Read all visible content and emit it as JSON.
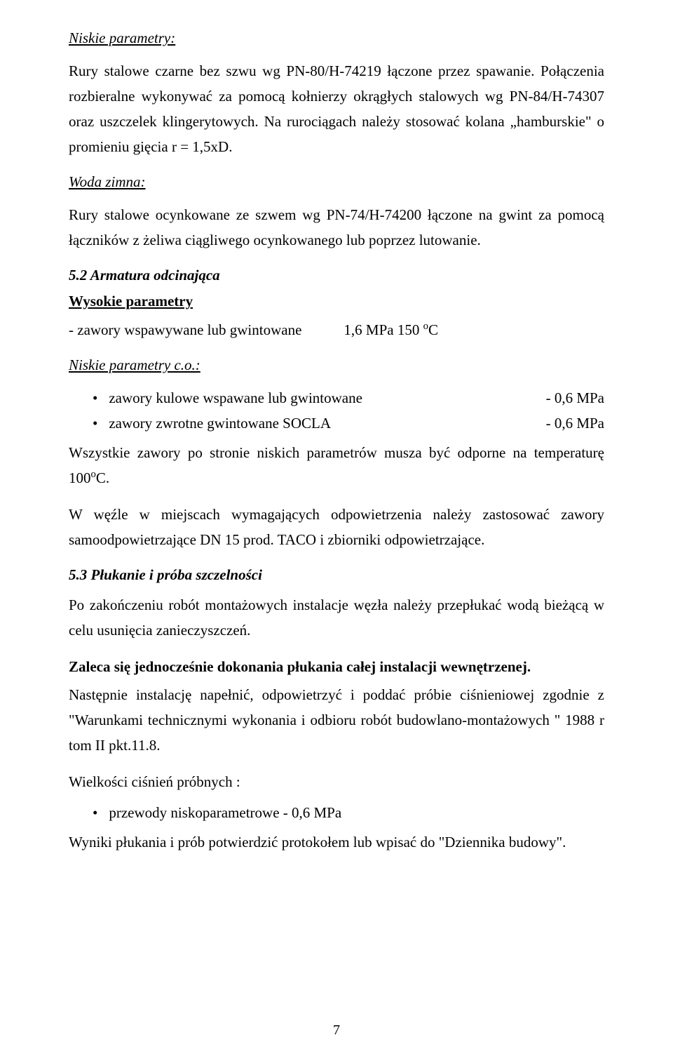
{
  "h1": "Niskie parametry:",
  "p1": "Rury stalowe czarne bez szwu wg PN-80/H-74219 łączone przez spawanie. Połączenia rozbieralne wykonywać za pomocą kołnierzy okrągłych stalowych wg PN-84/H-74307 oraz uszczelek klingerytowych. Na rurociągach należy stosować kolana „hamburskie\" o promieniu gięcia r = 1,5xD.",
  "h2": "Woda zimna:",
  "p2": "Rury stalowe ocynkowane ze szwem wg PN-74/H-74200 łączone na gwint za pomocą łączników z żeliwa ciągliwego ocynkowanego lub poprzez lutowanie.",
  "sec52": "5.2   Armatura odcinająca",
  "wysH": "Wysokie parametry",
  "wysL": "- zawory wspawywane lub gwintowane",
  "wysR_pre": "1,6 MPa  150 ",
  "wysR_unit": "C",
  "h3": "Niskie parametry   c.o.:",
  "b1l": "zawory kulowe wspawane lub gwintowane",
  "b1r": "- 0,6 MPa",
  "b2l": "zawory zwrotne gwintowane SOCLA",
  "b2r": "- 0,6 MPa",
  "p3a": "Wszystkie   zawory   po   stronie   niskich   parametrów   musza   być   odporne na temperaturę 100",
  "p3b": "C.",
  "p4": "W węźle w miejscach wymagających odpowietrzenia należy zastosować zawory samoodpowietrzające DN 15 prod. TACO i zbiorniki odpowietrzające.",
  "sec53": "5.3   Płukanie i próba szczelności",
  "p5": "Po zakończeniu robót montażowych instalacje węzła należy przepłukać wodą bieżącą w celu usunięcia zanieczyszczeń.",
  "p6": "Zaleca się jednocześnie dokonania płukania całej instalacji wewnętrzenej.",
  "p7": "Następnie instalację napełnić, odpowietrzyć i poddać próbie ciśnieniowej zgodnie z \"Warunkami technicznymi wykonania i odbioru robót budowlano-montażowych \" 1988 r tom II pkt.11.8.",
  "p8": "Wielkości ciśnień próbnych :",
  "b3": "przewody niskoparametrowe     - 0,6 MPa",
  "p9": "Wyniki płukania i prób potwierdzić protokołem lub wpisać do \"Dziennika budowy\".",
  "pg": "7"
}
